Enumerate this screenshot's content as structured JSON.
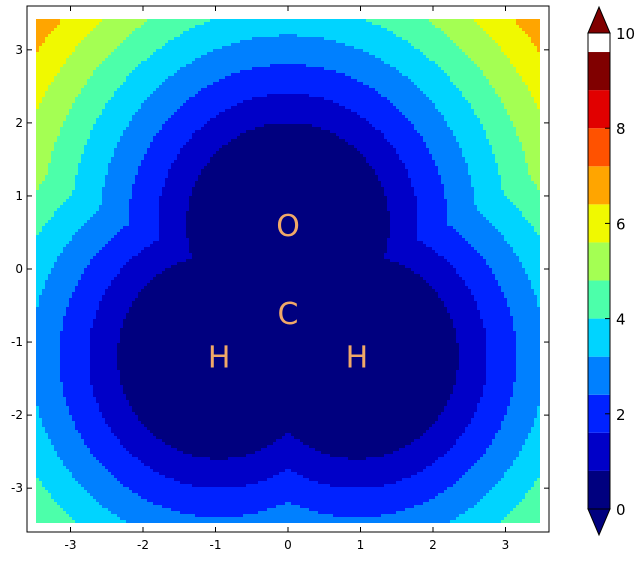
{
  "chart_data": {
    "type": "contour",
    "title": "",
    "xlabel": "",
    "ylabel": "",
    "xlim": [
      -3.6,
      3.6
    ],
    "ylim": [
      -3.6,
      3.6
    ],
    "x_ticks": [
      -3,
      -2,
      -1,
      0,
      1,
      2,
      3
    ],
    "y_ticks": [
      -3,
      -2,
      -1,
      0,
      1,
      2,
      3
    ],
    "grid": false,
    "atoms": [
      {
        "label": "O",
        "x": 0.0,
        "y": 0.6
      },
      {
        "label": "C",
        "x": 0.0,
        "y": -0.6
      },
      {
        "label": "H",
        "x": -0.95,
        "y": -1.2
      },
      {
        "label": "H",
        "x": 0.95,
        "y": -1.2
      }
    ],
    "atom_radius": 1.0,
    "contour_levels": [
      0,
      0.8,
      1.6,
      2.4,
      3.2,
      4.0,
      4.8,
      5.6,
      6.4,
      7.2,
      8.0,
      8.8,
      9.6
    ],
    "colors": [
      "#00007f",
      "#0000c8",
      "#0022ff",
      "#0080ff",
      "#00d4ff",
      "#4cffaa",
      "#a4ff53",
      "#f0f900",
      "#ffa500",
      "#ff5200",
      "#e10000",
      "#800000"
    ],
    "colorbar": {
      "ticks": [
        0,
        2,
        4,
        6,
        8,
        10
      ],
      "range": [
        0,
        10
      ],
      "extend": "both"
    }
  }
}
